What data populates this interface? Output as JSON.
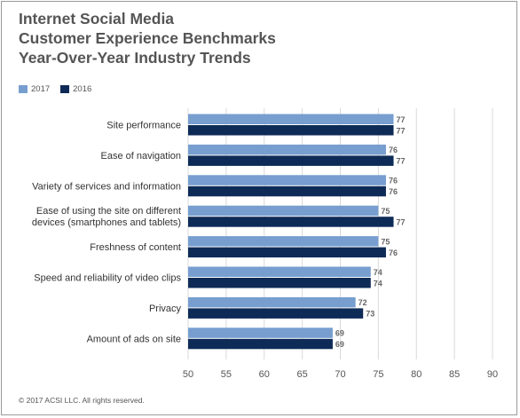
{
  "title_lines": [
    "Internet Social Media",
    "Customer Experience Benchmarks",
    "Year-Over-Year Industry Trends"
  ],
  "footer": "© 2017 ACSI LLC. All rights reserved.",
  "colors": {
    "s2017": "#779ecf",
    "s2016": "#0e2b57",
    "text": "#555555",
    "grid": "#d9d9d9"
  },
  "chart_data": {
    "type": "bar",
    "orientation": "horizontal",
    "categories": [
      [
        "Site performance"
      ],
      [
        "Ease of navigation"
      ],
      [
        "Variety of services and information"
      ],
      [
        "Ease of using the site on different",
        "devices (smartphones and tablets)"
      ],
      [
        "Freshness of content"
      ],
      [
        "Speed and reliability of video clips"
      ],
      [
        "Privacy"
      ],
      [
        "Amount of ads on site"
      ]
    ],
    "series": [
      {
        "name": "2017",
        "values": [
          77,
          76,
          76,
          75,
          75,
          74,
          72,
          69
        ]
      },
      {
        "name": "2016",
        "values": [
          77,
          77,
          76,
          77,
          76,
          74,
          73,
          69
        ]
      }
    ],
    "xlim": [
      50,
      90
    ],
    "xticks": [
      50,
      55,
      60,
      65,
      70,
      75,
      80,
      85,
      90
    ],
    "grid": true,
    "legend_position": "top-left"
  }
}
